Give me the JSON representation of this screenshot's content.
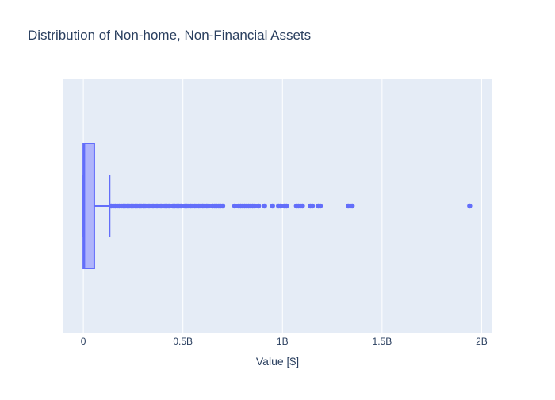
{
  "chart_data": {
    "type": "box",
    "title": "Distribution of Non-home, Non-Financial Assets",
    "xlabel": "Value [$]",
    "ylabel": "",
    "orientation": "horizontal",
    "xlim": [
      -100000000.0,
      2050000000.0
    ],
    "xticks": [
      {
        "value": 0,
        "label": "0"
      },
      {
        "value": 500000000,
        "label": "0.5B"
      },
      {
        "value": 1000000000,
        "label": "1B"
      },
      {
        "value": 1500000000,
        "label": "1.5B"
      },
      {
        "value": 2000000000,
        "label": "2B"
      }
    ],
    "grid": true,
    "box": {
      "min": 0,
      "q1": 0,
      "median": 5000000,
      "q3": 55000000,
      "upper_fence": 132000000
    },
    "outliers": [
      140000000,
      150000000,
      160000000,
      170000000,
      180000000,
      190000000,
      200000000,
      210000000,
      220000000,
      230000000,
      240000000,
      250000000,
      260000000,
      270000000,
      280000000,
      290000000,
      300000000,
      310000000,
      320000000,
      330000000,
      340000000,
      350000000,
      360000000,
      370000000,
      380000000,
      390000000,
      400000000,
      410000000,
      420000000,
      430000000,
      450000000,
      460000000,
      470000000,
      480000000,
      490000000,
      510000000,
      520000000,
      530000000,
      540000000,
      550000000,
      560000000,
      570000000,
      580000000,
      590000000,
      600000000,
      610000000,
      620000000,
      630000000,
      650000000,
      660000000,
      670000000,
      680000000,
      690000000,
      700000000,
      760000000,
      780000000,
      790000000,
      800000000,
      810000000,
      820000000,
      830000000,
      840000000,
      850000000,
      860000000,
      880000000,
      910000000,
      950000000,
      980000000,
      990000000,
      1010000000,
      1020000000,
      1070000000,
      1080000000,
      1090000000,
      1100000000,
      1140000000,
      1150000000,
      1180000000,
      1190000000,
      1330000000,
      1340000000,
      1350000000,
      1940000000
    ],
    "colors": {
      "box_line": "#636efa",
      "box_fill": "#a9aefc",
      "plot_bg": "#e5ecf6",
      "grid": "#ffffff",
      "text": "#2a3f5f"
    }
  }
}
